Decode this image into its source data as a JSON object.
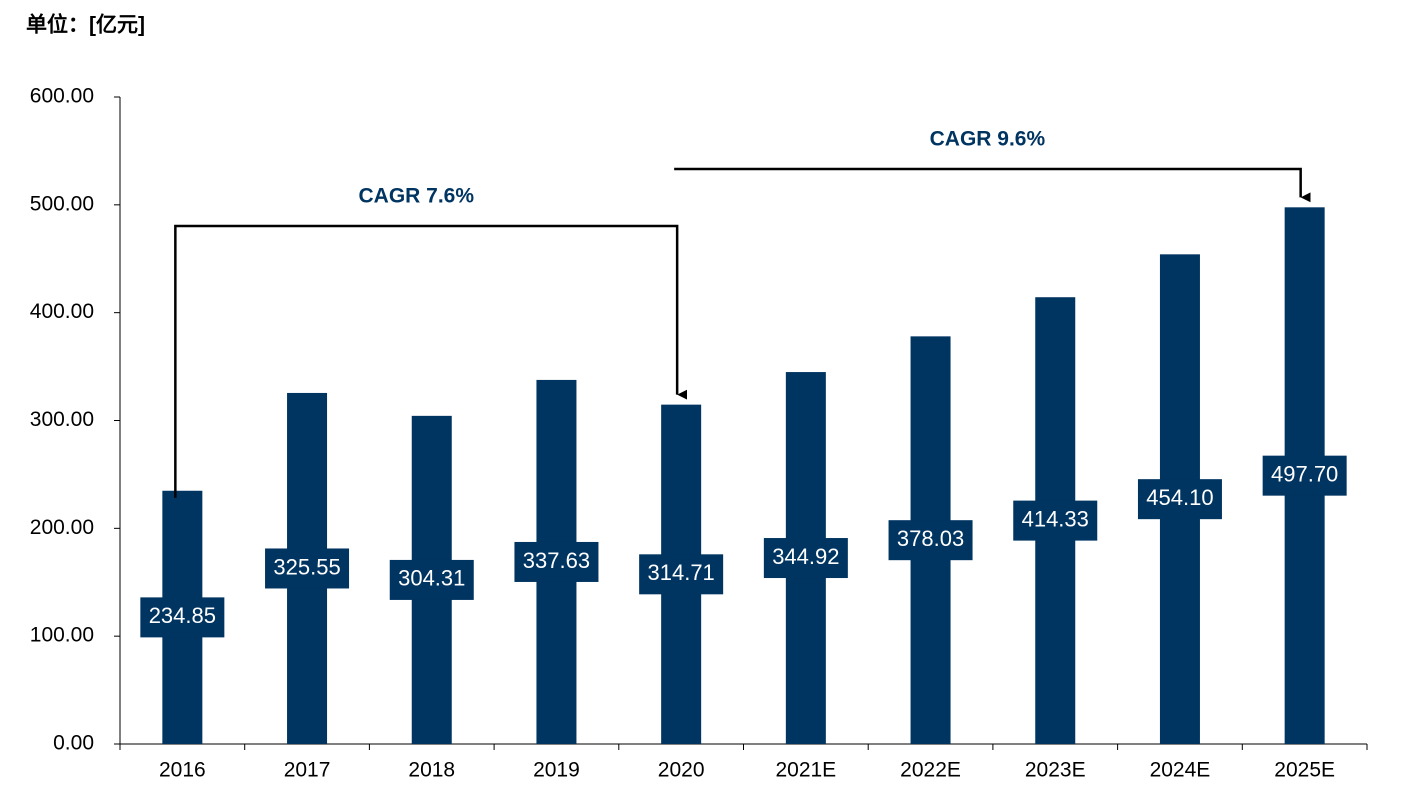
{
  "chart_data": {
    "type": "bar",
    "unit_label": "单位：[亿元]",
    "categories": [
      "2016",
      "2017",
      "2018",
      "2019",
      "2020",
      "2021E",
      "2022E",
      "2023E",
      "2024E",
      "2025E"
    ],
    "values": [
      234.85,
      325.55,
      304.31,
      337.63,
      314.71,
      344.92,
      378.03,
      414.33,
      454.1,
      497.7
    ],
    "value_labels": [
      "234.85",
      "325.55",
      "304.31",
      "337.63",
      "314.71",
      "344.92",
      "378.03",
      "414.33",
      "454.10",
      "497.70"
    ],
    "color": "#003461",
    "ylim": [
      0,
      600
    ],
    "yticks": [
      {
        "value": 0,
        "label": "0.00"
      },
      {
        "value": 100,
        "label": "100.00"
      },
      {
        "value": 200,
        "label": "200.00"
      },
      {
        "value": 300,
        "label": "300.00"
      },
      {
        "value": 400,
        "label": "400.00"
      },
      {
        "value": 500,
        "label": "500.00"
      },
      {
        "value": 600,
        "label": "600.00"
      }
    ],
    "grid": false,
    "annotations": [
      "CAGR 7.6%",
      "CAGR 9.6%"
    ]
  }
}
